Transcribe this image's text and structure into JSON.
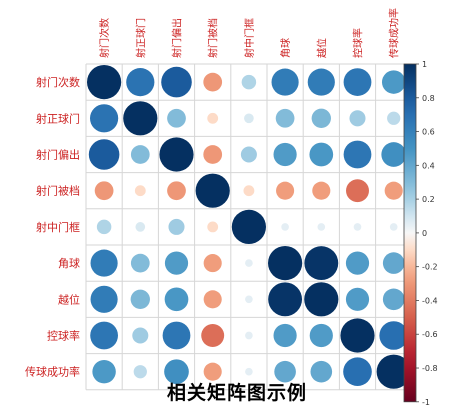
{
  "chart_data": {
    "type": "heatmap",
    "variables": [
      "射门次数",
      "射正球门",
      "射门偏出",
      "射门被档",
      "射中门框",
      "角球",
      "越位",
      "控球率",
      "传球成功率"
    ],
    "matrix": [
      [
        1.0,
        0.68,
        0.8,
        -0.3,
        0.18,
        0.63,
        0.63,
        0.66,
        0.47
      ],
      [
        0.68,
        1.0,
        0.3,
        -0.1,
        0.08,
        0.3,
        0.32,
        0.22,
        0.15
      ],
      [
        0.8,
        0.3,
        1.0,
        -0.3,
        0.22,
        0.46,
        0.48,
        0.66,
        0.52
      ],
      [
        -0.3,
        -0.1,
        -0.3,
        1.0,
        -0.1,
        -0.28,
        -0.28,
        -0.45,
        -0.28
      ],
      [
        0.18,
        0.08,
        0.22,
        -0.1,
        1.0,
        0.05,
        0.05,
        0.05,
        0.05
      ],
      [
        0.63,
        0.3,
        0.46,
        -0.28,
        0.05,
        1.0,
        0.98,
        0.46,
        0.4
      ],
      [
        0.63,
        0.32,
        0.48,
        -0.28,
        0.05,
        0.98,
        1.0,
        0.46,
        0.4
      ],
      [
        0.66,
        0.22,
        0.66,
        -0.45,
        0.05,
        0.46,
        0.46,
        1.0,
        0.7
      ],
      [
        0.47,
        0.15,
        0.52,
        -0.28,
        0.05,
        0.4,
        0.4,
        0.7,
        1.0
      ]
    ],
    "colorbar_ticks": [
      "1",
      "0.8",
      "0.6",
      "0.4",
      "0.2",
      "0",
      "-0.2",
      "-0.4",
      "-0.6",
      "-0.8",
      "-1"
    ],
    "range": [
      -1,
      1
    ]
  },
  "caption": "相关矩阵图示例",
  "colors": {
    "positive": "#1f3f78",
    "negative": "#7f1d2a",
    "label": "#cc2222"
  }
}
